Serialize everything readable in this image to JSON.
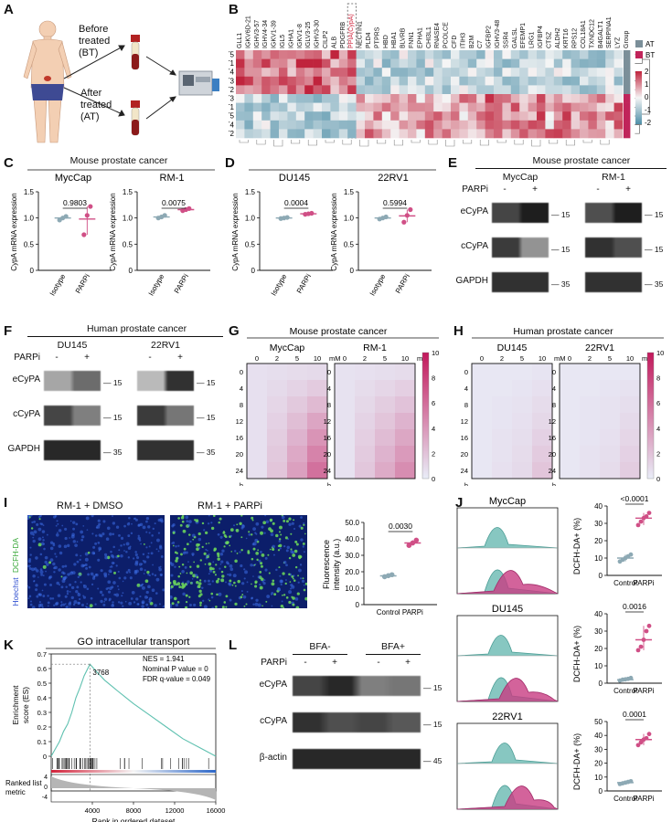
{
  "panel_letters": [
    "A",
    "B",
    "C",
    "D",
    "E",
    "F",
    "G",
    "H",
    "I",
    "J",
    "K",
    "L"
  ],
  "colors": {
    "pink": "#d04f86",
    "teal": "#5fb4ac",
    "gray": "#8da9b4",
    "heat_low": "#e9edf8",
    "heat_high": "#c2185b",
    "hm_blue": "#4f8fa8",
    "hm_red": "#c0243d"
  },
  "panelA": {
    "before_label": "Before\ntreated\n(BT)",
    "after_label": "After\ntreated\n(AT)"
  },
  "panelB": {
    "genes": [
      "GLL1",
      "IGKV6D-21",
      "IGHV3-57",
      "IGHV4-34",
      "IGKV1-39",
      "IGL5",
      "IGHA1",
      "IGKV1-8",
      "IGLV3-25",
      "IGHV3-30",
      "CILP2",
      "ALB",
      "PDGFRB",
      "PPIA(CypA)",
      "NECTIN1",
      "PLD4",
      "PTPRS",
      "HBD",
      "HBA1",
      "BLVRB",
      "FNN1",
      "EPHA1",
      "CHI3L1",
      "RNASE4",
      "PCOLCE",
      "CFD",
      "ITIH3",
      "B2M",
      "C7",
      "IGFBP2",
      "IGHV3-48",
      "SSR4",
      "GALSL",
      "EFEMP1",
      "LRG1",
      "IGFBP4",
      "CTSZ",
      "ALDH2",
      "KRT16",
      "RPS12",
      "COL18A1",
      "TXNDC12",
      "B4GALT1",
      "SERPINA1",
      "LYZ",
      "Group"
    ],
    "highlight_gene": "PPIA(CypA)",
    "samples": [
      "AT5",
      "AT1",
      "AT4",
      "AT3",
      "AT2",
      "BT3",
      "BT1",
      "BT5",
      "BT4",
      "BT2"
    ],
    "legend_groups": [
      "AT",
      "BT"
    ],
    "scale_ticks": [
      "2",
      "1",
      "0",
      "-1",
      "-2"
    ]
  },
  "panelC": {
    "title": "Mouse prostate cancer",
    "plots": [
      {
        "name": "MycCap",
        "pvalue": "0.9803",
        "ylim": [
          0,
          1.5
        ],
        "yticks": [
          "0",
          "0.5",
          "1.0",
          "1.5"
        ],
        "groups": [
          {
            "label": "Isotype",
            "mean": 1.0,
            "points": [
              0.96,
              1.0,
              1.03
            ],
            "color": "#8da9b4"
          },
          {
            "label": "PARPi",
            "mean": 0.98,
            "points": [
              0.68,
              1.05,
              1.22
            ],
            "color": "#d04f86"
          }
        ]
      },
      {
        "name": "RM-1",
        "pvalue": "0.0075",
        "ylim": [
          0,
          1.5
        ],
        "yticks": [
          "0",
          "0.5",
          "1.0",
          "1.5"
        ],
        "groups": [
          {
            "label": "Isotype",
            "mean": 1.02,
            "points": [
              1.0,
              1.02,
              1.05
            ],
            "color": "#8da9b4"
          },
          {
            "label": "PARPi",
            "mean": 1.16,
            "points": [
              1.14,
              1.16,
              1.18
            ],
            "color": "#d04f86"
          }
        ]
      }
    ],
    "ylabel": "CypA mRNA expression"
  },
  "panelD": {
    "title": "",
    "plots": [
      {
        "name": "DU145",
        "pvalue": "0.0004",
        "ylim": [
          0,
          1.5
        ],
        "yticks": [
          "0",
          "0.5",
          "1.0",
          "1.5"
        ],
        "groups": [
          {
            "label": "Isotype",
            "mean": 1.0,
            "points": [
              0.99,
              1.0,
              1.01
            ],
            "color": "#8da9b4"
          },
          {
            "label": "PARPi",
            "mean": 1.08,
            "points": [
              1.07,
              1.08,
              1.09
            ],
            "color": "#d04f86"
          }
        ]
      },
      {
        "name": "22RV1",
        "pvalue": "0.5994",
        "ylim": [
          0,
          1.5
        ],
        "yticks": [
          "0",
          "0.5",
          "1.0",
          "1.5"
        ],
        "groups": [
          {
            "label": "Isotype",
            "mean": 1.0,
            "points": [
              0.98,
              1.0,
              1.02
            ],
            "color": "#8da9b4"
          },
          {
            "label": "PARPi",
            "mean": 1.04,
            "points": [
              0.92,
              1.05,
              1.16
            ],
            "color": "#d04f86"
          }
        ]
      }
    ],
    "ylabel": "CypA mRNA expression"
  },
  "panelE": {
    "title": "Mouse prostate cancer",
    "lines": [
      "MycCap",
      "RM-1"
    ],
    "treatment": "PARPi",
    "minus": "-",
    "plus": "+",
    "rows": [
      "eCyPA",
      "cCyPA",
      "GAPDH"
    ],
    "mw": [
      "15",
      "15",
      "35"
    ]
  },
  "panelF": {
    "title": "Human prostate cancer",
    "lines": [
      "DU145",
      "22RV1"
    ],
    "treatment": "PARPi",
    "minus": "-",
    "plus": "+",
    "rows": [
      "eCyPA",
      "cCyPA",
      "GAPDH"
    ],
    "mw": [
      "15",
      "15",
      "35"
    ]
  },
  "panelG": {
    "title": "Mouse prostate cancer",
    "lines": [
      "MycCap",
      "RM-1"
    ],
    "conc": [
      "0",
      "2",
      "5",
      "10"
    ],
    "conc_unit": "mM",
    "times": [
      "0",
      "4",
      "8",
      "12",
      "16",
      "20",
      "24"
    ],
    "time_unit": "h",
    "scale": [
      "10",
      "8",
      "6",
      "4",
      "2",
      "0"
    ],
    "chart_data": [
      {
        "type": "heatmap",
        "name": "MycCap",
        "rows": [
          "0",
          "4",
          "8",
          "12",
          "16",
          "20",
          "24"
        ],
        "cols": [
          "0",
          "2",
          "5",
          "10"
        ],
        "values": [
          [
            0.6,
            0.7,
            0.8,
            0.9
          ],
          [
            0.6,
            0.9,
            1.2,
            1.6
          ],
          [
            0.6,
            1.1,
            1.7,
            2.4
          ],
          [
            0.6,
            1.3,
            2.2,
            3.4
          ],
          [
            0.6,
            1.5,
            2.7,
            4.2
          ],
          [
            0.6,
            1.7,
            3.2,
            5.0
          ],
          [
            0.6,
            1.9,
            3.6,
            5.8
          ]
        ],
        "range": [
          0,
          10
        ]
      },
      {
        "type": "heatmap",
        "name": "RM-1",
        "rows": [
          "0",
          "4",
          "8",
          "12",
          "16",
          "20",
          "24"
        ],
        "cols": [
          "0",
          "2",
          "5",
          "10"
        ],
        "values": [
          [
            0.5,
            0.6,
            0.7,
            0.8
          ],
          [
            0.5,
            0.8,
            1.1,
            1.4
          ],
          [
            0.5,
            1.0,
            1.5,
            2.0
          ],
          [
            0.5,
            1.2,
            1.9,
            2.7
          ],
          [
            0.5,
            1.4,
            2.3,
            3.3
          ],
          [
            0.5,
            1.6,
            2.7,
            3.9
          ],
          [
            0.5,
            1.8,
            3.1,
            4.5
          ]
        ],
        "range": [
          0,
          10
        ]
      }
    ]
  },
  "panelH": {
    "title": "Human prostate cancer",
    "lines": [
      "DU145",
      "22RV1"
    ],
    "conc": [
      "0",
      "2",
      "5",
      "10"
    ],
    "conc_unit": "mM",
    "times": [
      "0",
      "4",
      "8",
      "12",
      "16",
      "20",
      "24"
    ],
    "time_unit": "h",
    "scale": [
      "10",
      "8",
      "6",
      "4",
      "2",
      "0"
    ],
    "chart_data": [
      {
        "type": "heatmap",
        "name": "DU145",
        "rows": [
          "0",
          "4",
          "8",
          "12",
          "16",
          "20",
          "24"
        ],
        "cols": [
          "0",
          "2",
          "5",
          "10"
        ],
        "values": [
          [
            0.3,
            0.3,
            0.3,
            0.4
          ],
          [
            0.3,
            0.3,
            0.4,
            0.6
          ],
          [
            0.3,
            0.4,
            0.5,
            0.8
          ],
          [
            0.3,
            0.4,
            0.6,
            1.0
          ],
          [
            0.3,
            0.5,
            0.7,
            1.3
          ],
          [
            0.3,
            0.5,
            0.8,
            1.6
          ],
          [
            0.3,
            0.6,
            0.9,
            1.9
          ]
        ],
        "range": [
          0,
          10
        ]
      },
      {
        "type": "heatmap",
        "name": "22RV1",
        "rows": [
          "0",
          "4",
          "8",
          "12",
          "16",
          "20",
          "24"
        ],
        "cols": [
          "0",
          "2",
          "5",
          "10"
        ],
        "values": [
          [
            0.3,
            0.3,
            0.3,
            0.3
          ],
          [
            0.3,
            0.3,
            0.4,
            0.5
          ],
          [
            0.3,
            0.4,
            0.5,
            0.7
          ],
          [
            0.3,
            0.4,
            0.5,
            0.9
          ],
          [
            0.3,
            0.4,
            0.6,
            1.1
          ],
          [
            0.3,
            0.5,
            0.7,
            1.3
          ],
          [
            0.3,
            0.5,
            0.8,
            1.5
          ]
        ],
        "range": [
          0,
          10
        ]
      }
    ]
  },
  "panelI": {
    "image_labels": [
      "RM-1 + DMSO",
      "RM-1 + PARPi"
    ],
    "stain_green": "DCFH-DA",
    "stain_blue": "Hoechst",
    "chart_data": {
      "type": "scatter",
      "pvalue": "0.0030",
      "ylabel": "Fluorescence\nintensity (a.u.)",
      "ylim": [
        0,
        50
      ],
      "yticks": [
        "0",
        "10.0",
        "20.0",
        "30.0",
        "40.0",
        "50.0"
      ],
      "groups": [
        {
          "label": "Control",
          "mean": 17.5,
          "points": [
            17.0,
            17.6,
            18.2
          ],
          "color": "#8da9b4"
        },
        {
          "label": "PARPi",
          "mean": 37.5,
          "points": [
            36.0,
            37.5,
            39.2
          ],
          "color": "#d04f86"
        }
      ]
    }
  },
  "panelJ": {
    "ylabel": "DCFH-DA",
    "ylabel_sup": "+",
    "ylabel_unit": " (%)",
    "rows": [
      {
        "line": "MycCap",
        "pvalue": "<0.0001",
        "ylim": [
          0,
          40
        ],
        "yticks": [
          "0",
          "10",
          "20",
          "30",
          "40"
        ],
        "groups": [
          {
            "label": "Control",
            "mean": 10,
            "points": [
              8,
              9,
              10,
              11,
              12
            ],
            "color": "#8da9b4"
          },
          {
            "label": "PARPi",
            "mean": 33,
            "points": [
              29,
              31,
              33,
              34,
              36
            ],
            "color": "#d04f86"
          }
        ]
      },
      {
        "line": "DU145",
        "pvalue": "0.0016",
        "ylim": [
          0,
          40
        ],
        "yticks": [
          "0",
          "10",
          "20",
          "30",
          "40"
        ],
        "groups": [
          {
            "label": "Control",
            "mean": 2,
            "points": [
              1.5,
              2,
              2.2,
              2.5,
              3
            ],
            "color": "#8da9b4"
          },
          {
            "label": "PARPi",
            "mean": 25,
            "points": [
              19,
              21,
              25,
              30,
              33
            ],
            "color": "#d04f86"
          }
        ]
      },
      {
        "line": "22RV1",
        "pvalue": "0.0001",
        "ylim": [
          0,
          50
        ],
        "yticks": [
          "0",
          "10",
          "20",
          "30",
          "40",
          "50"
        ],
        "groups": [
          {
            "label": "Control",
            "mean": 6,
            "points": [
              5,
              5.5,
              6,
              6.5,
              7
            ],
            "color": "#8da9b4"
          },
          {
            "label": "PARPi",
            "mean": 37,
            "points": [
              33,
              35,
              37,
              38,
              41
            ],
            "color": "#d04f86"
          }
        ]
      }
    ],
    "xlabels": [
      "Control",
      "PARPi"
    ]
  },
  "panelK": {
    "title": "GO intracellular transport",
    "nes": "NES = 1.941",
    "pval": "Nominal P value = 0",
    "fdr": "FDR q-value = 0.049",
    "peak": "3768",
    "ylabel_top": "Enrichment\nscore (ES)",
    "ylabel_bottom": "Ranked list\nmetric",
    "xlabel": "Rank in ordered dataset",
    "chart_data": {
      "type": "line",
      "x": [
        0,
        400,
        800,
        1200,
        1600,
        2000,
        2400,
        2800,
        3200,
        3768,
        4400,
        5200,
        6400,
        8000,
        9600,
        11200,
        12800,
        14400,
        16000
      ],
      "y": [
        0,
        0.05,
        0.1,
        0.17,
        0.22,
        0.3,
        0.4,
        0.47,
        0.55,
        0.63,
        0.58,
        0.52,
        0.45,
        0.36,
        0.28,
        0.2,
        0.12,
        0.06,
        0.0
      ],
      "ylim": [
        0,
        0.7
      ],
      "yticks": [
        "0",
        "0.1",
        "0.2",
        "0.3",
        "0.4",
        "0.5",
        "0.6",
        "0.7"
      ],
      "xticks": [
        "4000",
        "8000",
        "12000",
        "16000"
      ],
      "metric_ticks": [
        "4",
        "0",
        "-4"
      ]
    }
  },
  "panelL": {
    "conditions": [
      "BFA-",
      "BFA+"
    ],
    "treatment": "PARPi",
    "minus": "-",
    "plus": "+",
    "rows": [
      "eCyPA",
      "cCyPA",
      "β-actin"
    ],
    "mw": [
      "15",
      "15",
      "45"
    ]
  }
}
